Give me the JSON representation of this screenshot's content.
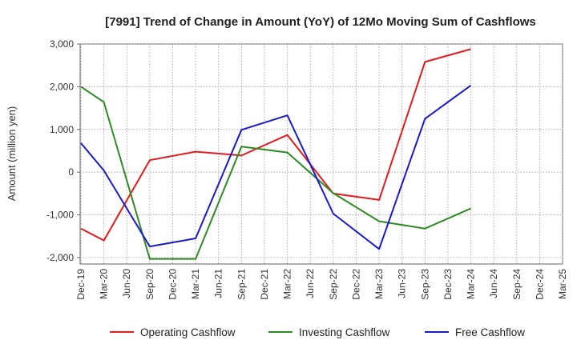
{
  "chart_data": {
    "type": "line",
    "title": "[7991]  Trend of Change in Amount (YoY) of 12Mo Moving Sum of Cashflows",
    "xlabel": "",
    "ylabel": "Amount (million yen)",
    "ylim": [
      -2150,
      3000
    ],
    "yticks": [
      3000,
      2000,
      1000,
      0,
      -1000,
      -2000
    ],
    "ytick_labels": [
      "3,000",
      "2,000",
      "1,000",
      "0",
      "-1,000",
      "-2,000"
    ],
    "categories": [
      "Dec-19",
      "Mar-20",
      "Jun-20",
      "Sep-20",
      "Dec-20",
      "Mar-21",
      "Jun-21",
      "Sep-21",
      "Dec-21",
      "Mar-22",
      "Jun-22",
      "Sep-22",
      "Dec-22",
      "Mar-23",
      "Jun-23",
      "Sep-23",
      "Dec-23",
      "Mar-24",
      "Jun-24",
      "Sep-24",
      "Dec-24",
      "Mar-25"
    ],
    "grid": true,
    "legend_position": "bottom",
    "series": [
      {
        "name": "Operating Cashflow",
        "color": "#e41a1c",
        "values": [
          -1320,
          -1600,
          null,
          280,
          null,
          480,
          null,
          390,
          null,
          870,
          null,
          -500,
          null,
          -650,
          null,
          2580,
          null,
          2880,
          null,
          null,
          null,
          null
        ]
      },
      {
        "name": "Investing Cashflow",
        "color": "#2e8b22",
        "values": [
          2000,
          1640,
          null,
          -2030,
          null,
          -2030,
          null,
          600,
          null,
          460,
          null,
          -490,
          null,
          -1150,
          null,
          -1320,
          null,
          -850,
          null,
          null,
          null,
          null
        ]
      },
      {
        "name": "Free Cashflow",
        "color": "#1a1acd",
        "values": [
          680,
          40,
          null,
          -1740,
          null,
          -1550,
          null,
          990,
          null,
          1330,
          null,
          -970,
          null,
          -1800,
          null,
          1250,
          null,
          2030,
          null,
          null,
          null,
          null
        ]
      }
    ]
  }
}
